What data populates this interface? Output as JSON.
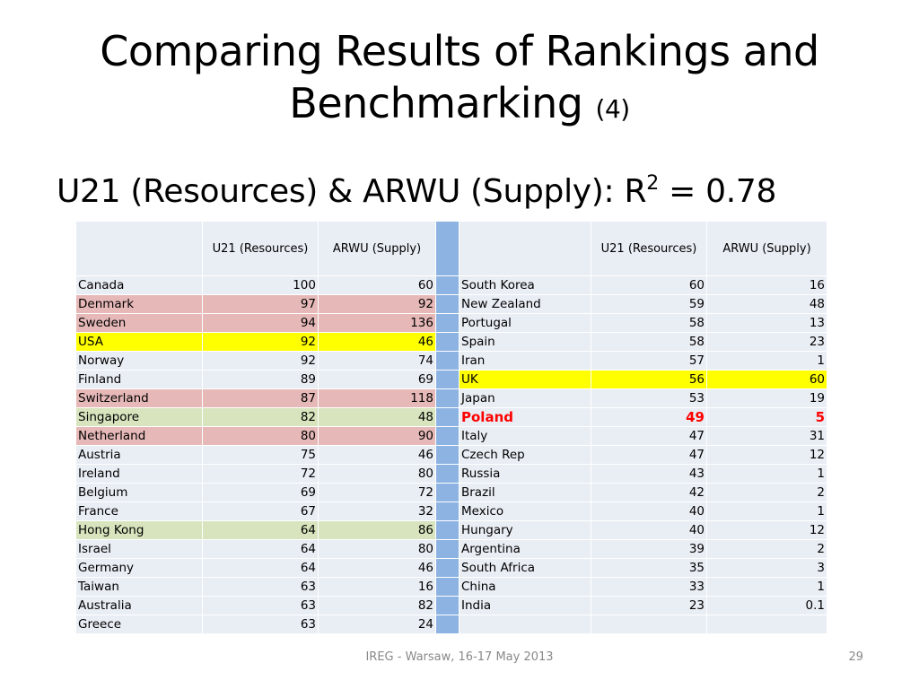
{
  "slide": {
    "title_line1": "Comparing Results of Rankings and",
    "title_line2": "Benchmarking",
    "title_paren": "(4)",
    "subtitle_main": "U21 (Resources) & ARWU (Supply): R",
    "subtitle_sup": "2",
    "subtitle_tail": " = 0.78",
    "footer": "IREG - Warsaw, 16-17 May 2013",
    "page_number": "29"
  },
  "table": {
    "headers": [
      "",
      "U21 (Resources)",
      "ARWU (Supply)",
      "",
      "",
      "U21 (Resources)",
      "ARWU (Supply)"
    ],
    "rows": [
      {
        "left": {
          "country": "Canada",
          "u21": "100",
          "arwu": "60",
          "hl": ""
        },
        "right": {
          "country": "South Korea",
          "u21": "60",
          "arwu": "16",
          "hl": ""
        }
      },
      {
        "left": {
          "country": "Denmark",
          "u21": "97",
          "arwu": "92",
          "hl": "pink"
        },
        "right": {
          "country": "New Zealand",
          "u21": "59",
          "arwu": "48",
          "hl": ""
        }
      },
      {
        "left": {
          "country": "Sweden",
          "u21": "94",
          "arwu": "136",
          "hl": "pink"
        },
        "right": {
          "country": "Portugal",
          "u21": "58",
          "arwu": "13",
          "hl": ""
        }
      },
      {
        "left": {
          "country": "USA",
          "u21": "92",
          "arwu": "46",
          "hl": "yellow"
        },
        "right": {
          "country": "Spain",
          "u21": "58",
          "arwu": "23",
          "hl": ""
        }
      },
      {
        "left": {
          "country": "Norway",
          "u21": "92",
          "arwu": "74",
          "hl": ""
        },
        "right": {
          "country": "Iran",
          "u21": "57",
          "arwu": "1",
          "hl": ""
        }
      },
      {
        "left": {
          "country": "Finland",
          "u21": "89",
          "arwu": "69",
          "hl": ""
        },
        "right": {
          "country": "UK",
          "u21": "56",
          "arwu": "60",
          "hl": "yellow"
        }
      },
      {
        "left": {
          "country": "Switzerland",
          "u21": "87",
          "arwu": "118",
          "hl": "pink"
        },
        "right": {
          "country": "Japan",
          "u21": "53",
          "arwu": "19",
          "hl": ""
        }
      },
      {
        "left": {
          "country": "Singapore",
          "u21": "82",
          "arwu": "48",
          "hl": "green"
        },
        "right": {
          "country": "Poland",
          "u21": "49",
          "arwu": "5",
          "hl": "red"
        }
      },
      {
        "left": {
          "country": "Netherland",
          "u21": "80",
          "arwu": "90",
          "hl": "pink"
        },
        "right": {
          "country": "Italy",
          "u21": "47",
          "arwu": "31",
          "hl": ""
        }
      },
      {
        "left": {
          "country": "Austria",
          "u21": "75",
          "arwu": "46",
          "hl": ""
        },
        "right": {
          "country": "Czech Rep",
          "u21": "47",
          "arwu": "12",
          "hl": ""
        }
      },
      {
        "left": {
          "country": "Ireland",
          "u21": "72",
          "arwu": "80",
          "hl": ""
        },
        "right": {
          "country": "Russia",
          "u21": "43",
          "arwu": "1",
          "hl": ""
        }
      },
      {
        "left": {
          "country": "Belgium",
          "u21": "69",
          "arwu": "72",
          "hl": ""
        },
        "right": {
          "country": "Brazil",
          "u21": "42",
          "arwu": "2",
          "hl": ""
        }
      },
      {
        "left": {
          "country": "France",
          "u21": "67",
          "arwu": "32",
          "hl": ""
        },
        "right": {
          "country": "Mexico",
          "u21": "40",
          "arwu": "1",
          "hl": ""
        }
      },
      {
        "left": {
          "country": "Hong Kong",
          "u21": "64",
          "arwu": "86",
          "hl": "green"
        },
        "right": {
          "country": "Hungary",
          "u21": "40",
          "arwu": "12",
          "hl": ""
        }
      },
      {
        "left": {
          "country": "Israel",
          "u21": "64",
          "arwu": "80",
          "hl": ""
        },
        "right": {
          "country": "Argentina",
          "u21": "39",
          "arwu": "2",
          "hl": ""
        }
      },
      {
        "left": {
          "country": "Germany",
          "u21": "64",
          "arwu": "46",
          "hl": ""
        },
        "right": {
          "country": "South Africa",
          "u21": "35",
          "arwu": "3",
          "hl": ""
        }
      },
      {
        "left": {
          "country": "Taiwan",
          "u21": "63",
          "arwu": "16",
          "hl": ""
        },
        "right": {
          "country": "China",
          "u21": "33",
          "arwu": "1",
          "hl": ""
        }
      },
      {
        "left": {
          "country": "Australia",
          "u21": "63",
          "arwu": "82",
          "hl": ""
        },
        "right": {
          "country": "India",
          "u21": "23",
          "arwu": "0.1",
          "hl": ""
        }
      },
      {
        "left": {
          "country": "Greece",
          "u21": "63",
          "arwu": "24",
          "hl": ""
        },
        "right": {
          "country": "",
          "u21": "",
          "arwu": "",
          "hl": ""
        }
      }
    ]
  },
  "colors": {
    "cell_default": "#e9edf4",
    "separator": "#8db3e2",
    "highlight_pink": "#e6b9b8",
    "highlight_yellow": "#ffff00",
    "highlight_green": "#d7e4bd",
    "highlight_red_text": "#ff0000",
    "footer_text": "#898989"
  }
}
